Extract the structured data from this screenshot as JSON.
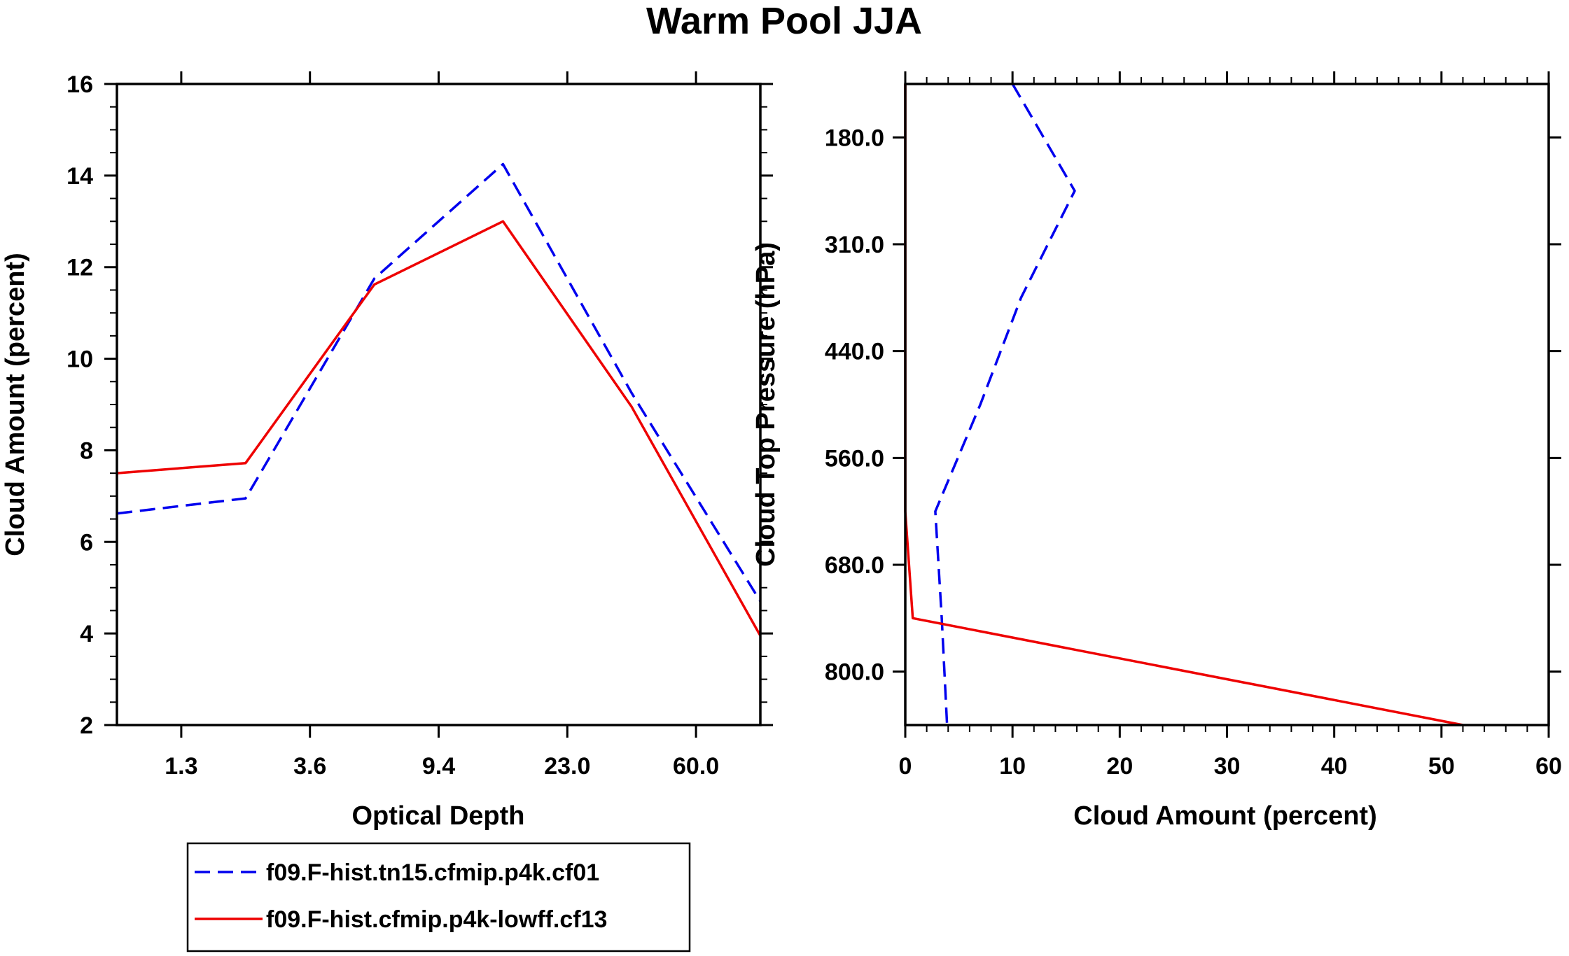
{
  "title": "Warm Pool JJA",
  "chart_data": [
    {
      "type": "line",
      "name": "optical-depth-panel",
      "xlabel": "Optical Depth",
      "ylabel": "Cloud Amount (percent)",
      "ylim": [
        2,
        16
      ],
      "yticks": [
        "2",
        "4",
        "6",
        "8",
        "10",
        "12",
        "14",
        "16"
      ],
      "xlim": [
        0,
        5
      ],
      "xtick_positions": [
        0.5,
        1.5,
        2.5,
        3.5,
        4.5
      ],
      "xtick_labels": [
        "1.3",
        "3.6",
        "9.4",
        "23.0",
        "60.0"
      ],
      "x": [
        0,
        1,
        2,
        3,
        4,
        5
      ],
      "series": [
        {
          "name": "f09.F-hist.tn15.cfmip.p4k.cf01",
          "color": "#0000ee",
          "dash": "dashed",
          "values": [
            6.62,
            6.95,
            11.75,
            14.25,
            9.25,
            4.7
          ]
        },
        {
          "name": "f09.F-hist.cfmip.p4k-lowff.cf13",
          "color": "#ee0000",
          "dash": "solid",
          "values": [
            7.5,
            7.72,
            11.62,
            13.0,
            8.95,
            3.95
          ]
        }
      ]
    },
    {
      "type": "line",
      "name": "cloud-top-pressure-panel",
      "xlabel": "Cloud Amount (percent)",
      "ylabel": "Cloud Top Pressure (hPa)",
      "xlim": [
        0,
        60
      ],
      "xticks": [
        "0",
        "10",
        "20",
        "30",
        "40",
        "50",
        "60"
      ],
      "ylim_note": "pressure increases downward",
      "ytick_labels": [
        "180.0",
        "310.0",
        "440.0",
        "560.0",
        "680.0",
        "800.0"
      ],
      "series": [
        {
          "name": "f09.F-hist.tn15.cfmip.p4k.cf01",
          "color": "#0000ee",
          "dash": "dashed",
          "levels": [
            6,
            5,
            4,
            3,
            2,
            1,
            0
          ],
          "values": [
            10.0,
            15.8,
            10.8,
            7.0,
            2.8,
            3.4,
            3.9
          ]
        },
        {
          "name": "f09.F-hist.cfmip.p4k-lowff.cf13",
          "color": "#ee0000",
          "dash": "solid",
          "levels": [
            6,
            5,
            4,
            3,
            2,
            1,
            0
          ],
          "values": [
            0.0,
            0.0,
            0.0,
            0.0,
            0.0,
            0.7,
            52.0
          ]
        }
      ]
    }
  ],
  "legend": [
    {
      "label": "f09.F-hist.tn15.cfmip.p4k.cf01",
      "color": "#0000ee",
      "dash": "dashed"
    },
    {
      "label": "f09.F-hist.cfmip.p4k-lowff.cf13",
      "color": "#ee0000",
      "dash": "solid"
    }
  ]
}
